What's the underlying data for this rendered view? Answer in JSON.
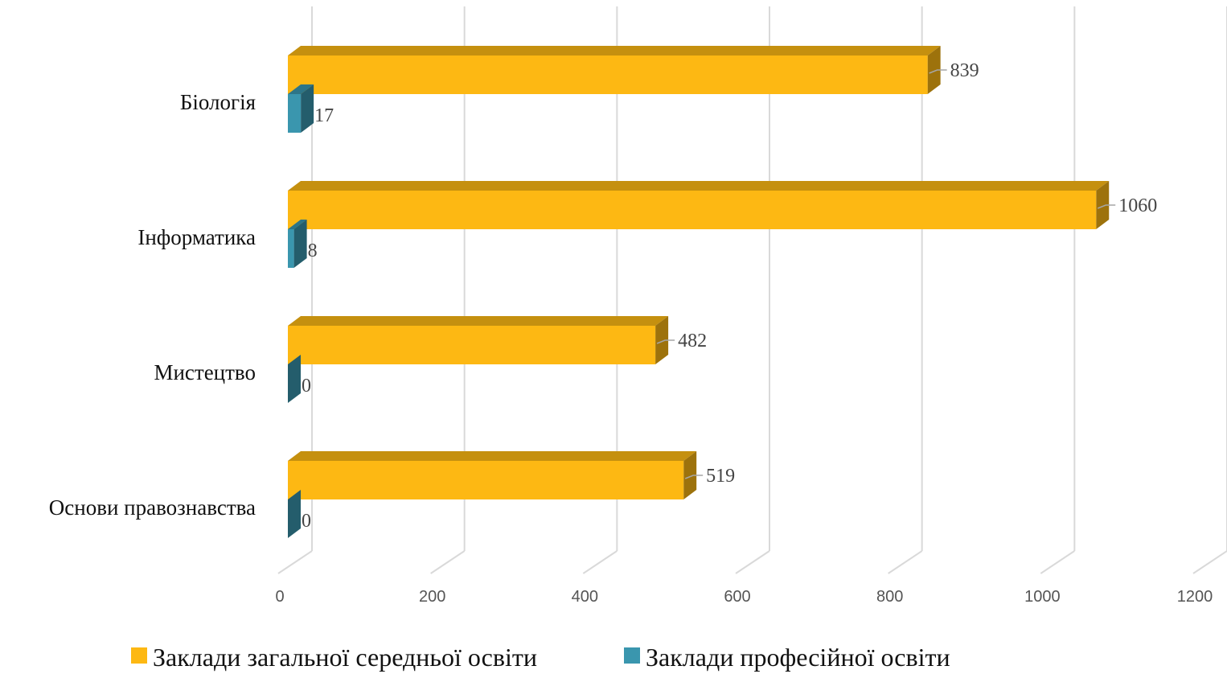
{
  "chart_data": {
    "type": "bar",
    "orientation": "horizontal",
    "style": "3d",
    "categories": [
      "Біологія",
      "Інформатика",
      "Мистецтво",
      "Основи правознавства"
    ],
    "series": [
      {
        "name": "Заклади загальної середньої освіти",
        "values": [
          839,
          1060,
          482,
          519
        ],
        "color": "#FDB813"
      },
      {
        "name": "Заклади професійної освіти",
        "values": [
          17,
          8,
          0,
          0
        ],
        "color": "#3A96AE"
      }
    ],
    "xlim": [
      0,
      1200
    ],
    "xticks": [
      "0",
      "200",
      "400",
      "600",
      "800",
      "1000",
      "1200"
    ],
    "grid": true,
    "legend": "bottom",
    "title": "",
    "xlabel": "",
    "ylabel": ""
  }
}
